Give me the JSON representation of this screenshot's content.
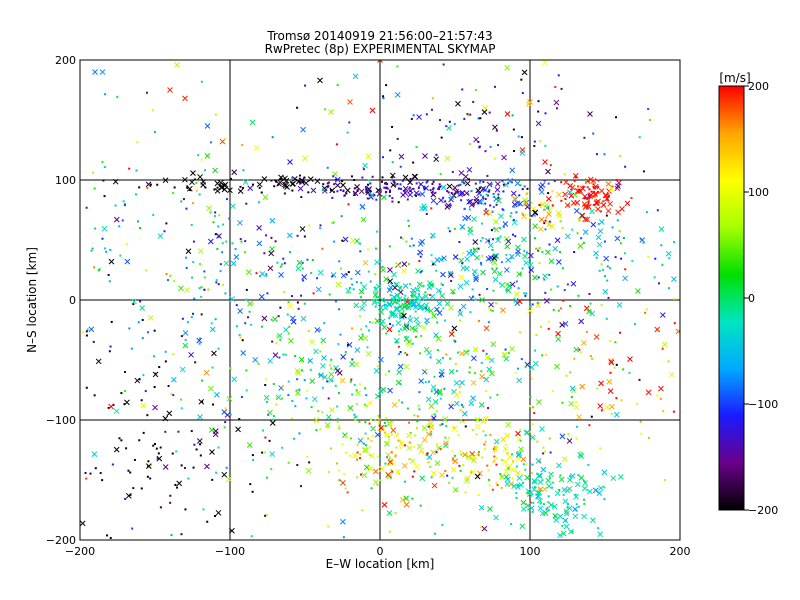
{
  "chart_data": {
    "type": "scatter",
    "title_line1": "Tromsø 20140919 21:56:00–21:57:43",
    "title_line2": "RwPretec (8p) EXPERIMENTAL SKYMAP",
    "xlabel": "E–W location [km]",
    "ylabel": "N–S location [km]",
    "xlim": [
      -200,
      200
    ],
    "ylim": [
      -200,
      200
    ],
    "xticks": [
      -200,
      -100,
      0,
      100,
      200
    ],
    "yticks": [
      -200,
      -100,
      0,
      100,
      200
    ],
    "xtick_labels": [
      "−200",
      "−100",
      "0",
      "100",
      "200"
    ],
    "ytick_labels": [
      "−200",
      "−100",
      "0",
      "100",
      "200"
    ],
    "grid": true,
    "markers": [
      "dot",
      "x"
    ],
    "colorbar": {
      "label": "[m/s]",
      "range": [
        -200,
        200
      ],
      "ticks": [
        -200,
        -100,
        0,
        100,
        200
      ],
      "tick_labels": [
        "−200",
        "−100",
        "0",
        "100",
        "200"
      ],
      "colormap": [
        "#000000",
        "#6a008a",
        "#1a1aff",
        "#00aaff",
        "#00e5c0",
        "#00e000",
        "#a6ff00",
        "#ffff00",
        "#ffa500",
        "#ff0000"
      ]
    },
    "series": [
      {
        "marker": "x",
        "points": [
          [
            -190,
            190,
            -80
          ],
          [
            -185,
            190,
            -70
          ],
          [
            -140,
            175,
            190
          ],
          [
            -130,
            168,
            190
          ],
          [
            -115,
            145,
            -90
          ],
          [
            -105,
            132,
            180
          ],
          [
            -85,
            148,
            0
          ],
          [
            -40,
            183,
            -200
          ],
          [
            0,
            200,
            195
          ],
          [
            -20,
            165,
            175
          ],
          [
            -5,
            158,
            200
          ],
          [
            70,
            160,
            120
          ],
          [
            85,
            155,
            200
          ],
          [
            100,
            165,
            160
          ],
          [
            110,
            198,
            110
          ],
          [
            140,
            155,
            -170
          ],
          [
            -60,
            115,
            -120
          ],
          [
            -50,
            118,
            90
          ],
          [
            -30,
            105,
            55
          ],
          [
            -10,
            112,
            -20
          ],
          [
            30,
            120,
            -140
          ],
          [
            45,
            118,
            75
          ],
          [
            95,
            125,
            190
          ],
          [
            110,
            115,
            195
          ]
        ]
      },
      {
        "marker": "dot",
        "points": [
          [
            -185,
            115,
            40
          ],
          [
            -170,
            80,
            30
          ],
          [
            -160,
            60,
            20
          ],
          [
            -150,
            140,
            10
          ],
          [
            -120,
            30,
            50
          ],
          [
            -110,
            70,
            -10
          ],
          [
            -80,
            20,
            0
          ],
          [
            -60,
            40,
            10
          ],
          [
            -40,
            60,
            -30
          ],
          [
            -20,
            10,
            25
          ],
          [
            20,
            45,
            -15
          ],
          [
            40,
            150,
            -130
          ],
          [
            60,
            130,
            60
          ],
          [
            80,
            60,
            -20
          ],
          [
            120,
            40,
            15
          ],
          [
            150,
            20,
            5
          ],
          [
            170,
            -20,
            -30
          ],
          [
            160,
            120,
            70
          ],
          [
            180,
            150,
            45
          ],
          [
            -170,
            -60,
            -180
          ],
          [
            -150,
            -120,
            -200
          ],
          [
            -130,
            -140,
            -160
          ],
          [
            -110,
            -180,
            -200
          ],
          [
            190,
            -150,
            130
          ]
        ]
      }
    ],
    "scatter_model": {
      "description_free": true,
      "clusters": [
        {
          "cx": -60,
          "cy": 97,
          "sx": 55,
          "sy": 4,
          "v": -200,
          "vs": 10,
          "n": 110,
          "xfrac": 0.55
        },
        {
          "cx": 20,
          "cy": 92,
          "sx": 30,
          "sy": 5,
          "v": -140,
          "vs": 20,
          "n": 130,
          "xfrac": 0.15
        },
        {
          "cx": 75,
          "cy": 80,
          "sx": 25,
          "sy": 12,
          "v": -100,
          "vs": 40,
          "n": 90,
          "xfrac": 0.45
        },
        {
          "cx": 110,
          "cy": 75,
          "sx": 12,
          "sy": 8,
          "v": 120,
          "vs": 40,
          "n": 35,
          "xfrac": 0.5
        },
        {
          "cx": 140,
          "cy": 87,
          "sx": 10,
          "sy": 7,
          "v": 195,
          "vs": 8,
          "n": 90,
          "xfrac": 0.5
        },
        {
          "cx": 90,
          "cy": 30,
          "sx": 60,
          "sy": 25,
          "v": -50,
          "vs": 60,
          "n": 260,
          "xfrac": 0.45
        },
        {
          "cx": 15,
          "cy": -5,
          "sx": 12,
          "sy": 10,
          "v": -20,
          "vs": 20,
          "n": 120,
          "xfrac": 0.6
        },
        {
          "cx": 30,
          "cy": -70,
          "sx": 55,
          "sy": 45,
          "v": 30,
          "vs": 70,
          "n": 300,
          "xfrac": 0.4
        },
        {
          "cx": -70,
          "cy": -30,
          "sx": 60,
          "sy": 60,
          "v": -30,
          "vs": 60,
          "n": 220,
          "xfrac": 0.3
        },
        {
          "cx": 5,
          "cy": -125,
          "sx": 20,
          "sy": 15,
          "v": 110,
          "vs": 50,
          "n": 120,
          "xfrac": 0.3
        },
        {
          "cx": 75,
          "cy": -130,
          "sx": 20,
          "sy": 15,
          "v": 120,
          "vs": 40,
          "n": 90,
          "xfrac": 0.4
        },
        {
          "cx": 115,
          "cy": -160,
          "sx": 20,
          "sy": 20,
          "v": -20,
          "vs": 20,
          "n": 140,
          "xfrac": 0.6
        },
        {
          "cx": -150,
          "cy": -130,
          "sx": 40,
          "sy": 50,
          "v": -200,
          "vs": 20,
          "n": 130,
          "xfrac": 0.2
        },
        {
          "cx": 150,
          "cy": -60,
          "sx": 35,
          "sy": 40,
          "v": 150,
          "vs": 60,
          "n": 60,
          "xfrac": 0.4
        },
        {
          "cx": -130,
          "cy": 40,
          "sx": 50,
          "sy": 35,
          "v": -40,
          "vs": 80,
          "n": 90,
          "xfrac": 0.3
        },
        {
          "cx": 60,
          "cy": 140,
          "sx": 45,
          "sy": 25,
          "v": -150,
          "vs": 50,
          "n": 70,
          "xfrac": 0.2
        },
        {
          "cx": 0,
          "cy": 0,
          "sx": 115,
          "sy": 115,
          "v": 0,
          "vs": 120,
          "n": 350,
          "xfrac": 0.3
        }
      ]
    }
  }
}
